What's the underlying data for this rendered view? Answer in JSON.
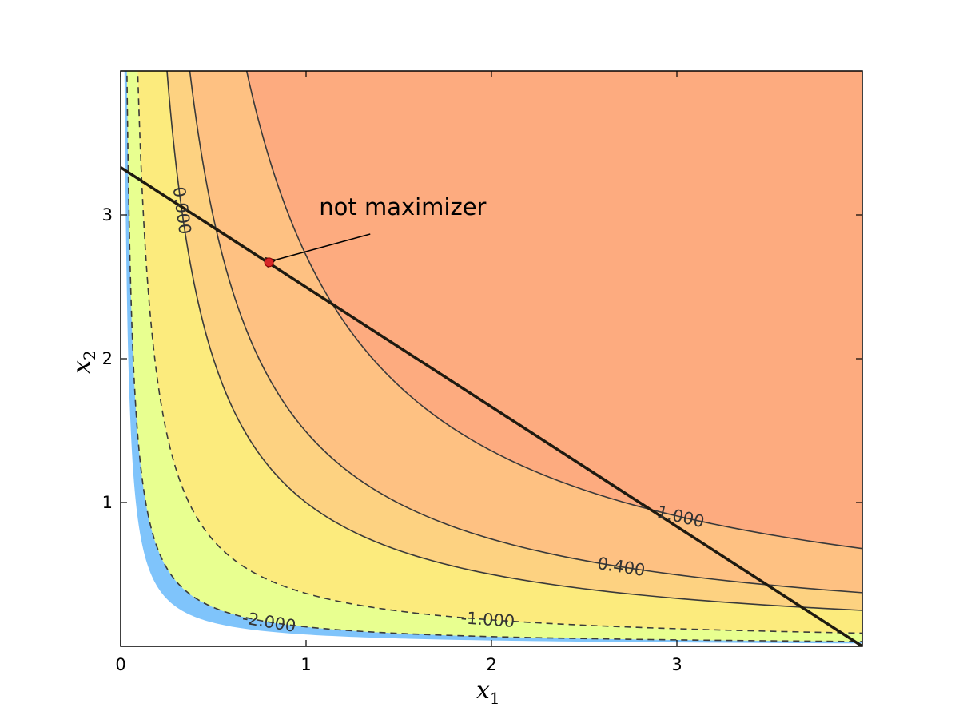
{
  "chart_data": {
    "type": "contour",
    "function": "log(x1) + log(x2)",
    "xlabel": "x",
    "xlabel_sub": "1",
    "ylabel": "x",
    "ylabel_sub": "2",
    "xlim": [
      0,
      4
    ],
    "ylim": [
      0,
      4
    ],
    "xticks": [
      0,
      1,
      2,
      3
    ],
    "yticks": [
      1,
      2,
      3
    ],
    "grid": false,
    "filled_levels": [
      -2.5,
      -2.0,
      -1.0,
      0.0,
      0.4,
      1.0,
      2.8
    ],
    "fill_colors": [
      "#7fc4fb",
      "#e8ff90",
      "#fceb7d",
      "#fdd281",
      "#fec182",
      "#fdab7f"
    ],
    "contour_lines": [
      {
        "level": -2.0,
        "label": "-2.000",
        "style": "dashed",
        "label_x": 0.8
      },
      {
        "level": -1.0,
        "label": "-1.000",
        "style": "dashed",
        "label_x": 1.98
      },
      {
        "level": 0.0,
        "label": "0.000",
        "style": "solid",
        "label_x": 0.33
      },
      {
        "level": 0.4,
        "label": "0.400",
        "style": "solid",
        "label_x": 2.7
      },
      {
        "level": 1.0,
        "label": "1.000",
        "style": "solid",
        "label_x": 3.02
      }
    ],
    "constraint_line": {
      "points": [
        [
          0,
          3.33
        ],
        [
          4,
          0
        ]
      ]
    },
    "point": {
      "x": 0.8,
      "y": 2.67,
      "color": "#d62728"
    },
    "annotation": {
      "text": "not maximizer",
      "text_x": 1.07,
      "text_y": 3.0
    }
  }
}
